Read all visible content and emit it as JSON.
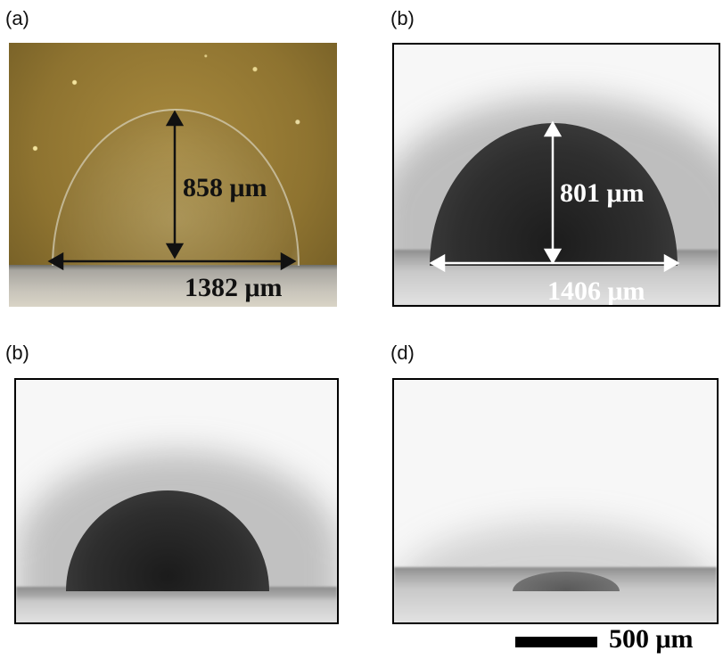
{
  "panels": [
    {
      "label": "(a)",
      "height_label": "858 μm",
      "width_label": "1382 μm"
    },
    {
      "label": "(b)",
      "height_label": "801 μm",
      "width_label": "1406 μm"
    },
    {
      "label": "(b)"
    },
    {
      "label": "(d)"
    }
  ],
  "scale_bar": {
    "label": "500 μm"
  },
  "colors": {
    "arrows_panel_a": "#111111",
    "arrows_panel_b": "#ffffff"
  }
}
